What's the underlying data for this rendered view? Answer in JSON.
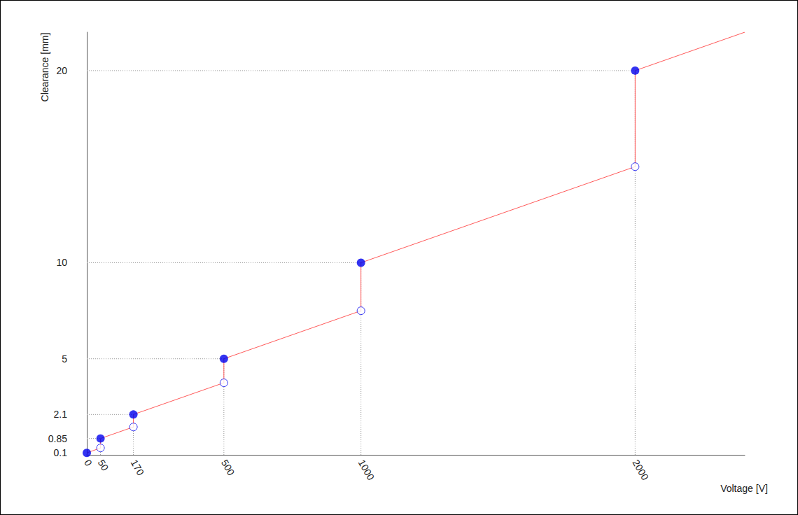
{
  "chart_data": {
    "type": "line",
    "x_label": "Voltage [V]",
    "y_label": "Clearance [mm]",
    "xlim": [
      0,
      2400
    ],
    "xticks": [
      0,
      50,
      170,
      500,
      1000,
      2000
    ],
    "ylim": [
      0,
      22
    ],
    "yticks": [
      0.1,
      0.85,
      2.1,
      5,
      10,
      20
    ],
    "grid": true,
    "series": [
      {
        "type": "line",
        "color": "#ff5a5a",
        "line_style": "solid",
        "x": [
          0,
          50,
          50,
          170,
          170,
          500,
          500,
          1000,
          1000,
          2000,
          2000,
          2400
        ],
        "values": [
          0.1,
          0.36,
          0.85,
          1.45,
          2.1,
          3.75,
          5,
          7.5,
          10,
          15,
          20,
          22
        ]
      },
      {
        "type": "scatter",
        "color": "#0000ee",
        "marker": "open_circle",
        "x": [
          50,
          170,
          500,
          1000,
          2000
        ],
        "values": [
          0.36,
          1.45,
          3.75,
          7.5,
          15
        ]
      },
      {
        "type": "scatter",
        "color": "#0000ee",
        "marker": "circle",
        "x": [
          0,
          50,
          170,
          500,
          1000,
          2000
        ],
        "values": [
          0.1,
          0.85,
          2.1,
          5,
          10,
          20
        ]
      }
    ]
  }
}
